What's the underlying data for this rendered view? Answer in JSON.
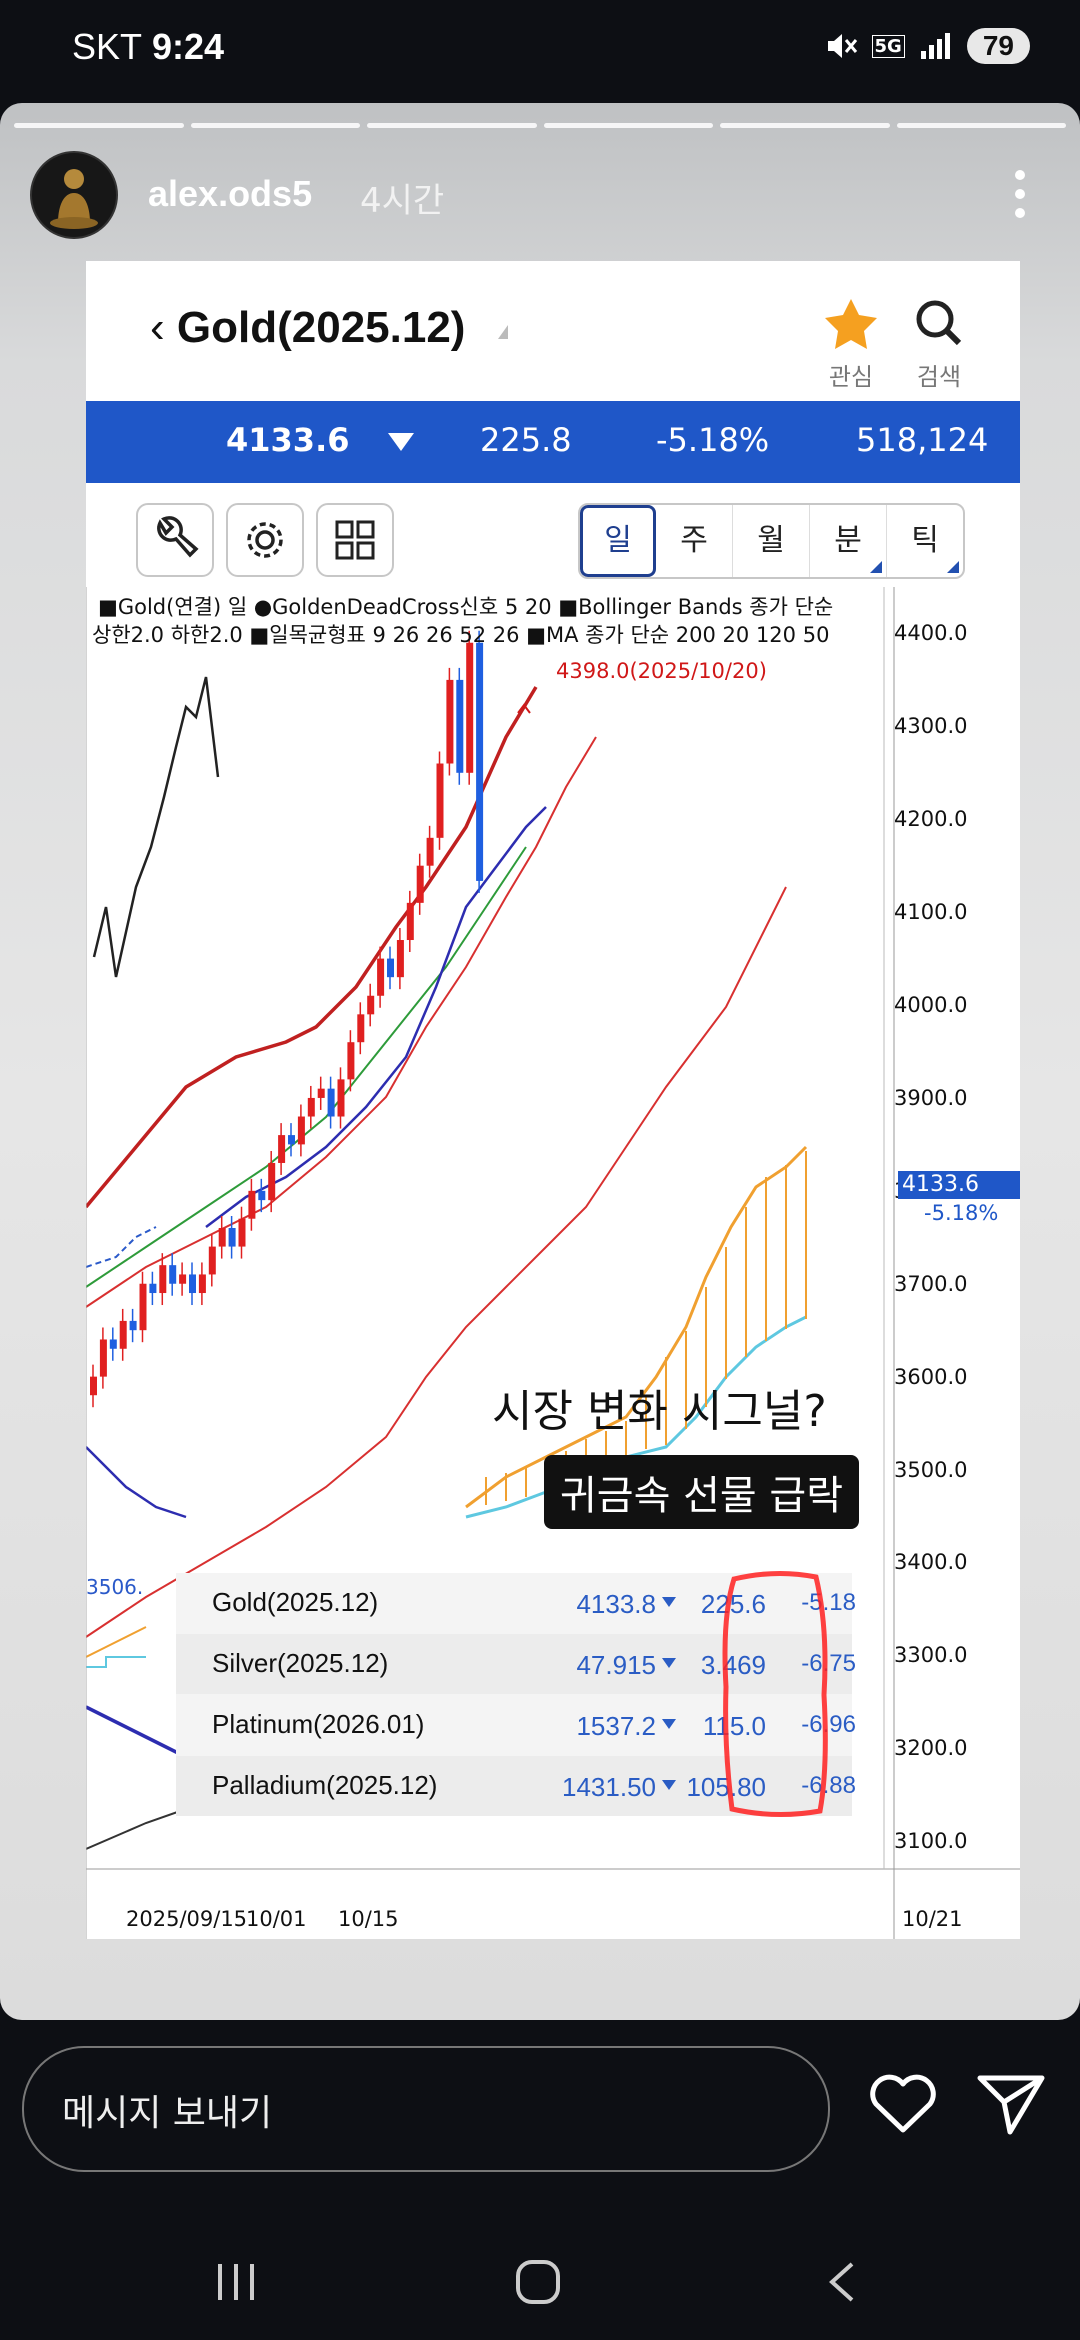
{
  "status_bar": {
    "carrier": "SKT",
    "time": "9:24",
    "network": "5G",
    "battery": "79"
  },
  "story": {
    "username": "alex.ods5",
    "time_ago": "4시간",
    "progress_segments": 6
  },
  "app": {
    "title": "Gold(2025.12)",
    "fav_label": "관심",
    "search_label": "검색",
    "quote": {
      "price": "4133.6",
      "change": "225.8",
      "percent": "-5.18%",
      "volume": "518,124"
    },
    "periods": [
      {
        "label": "일",
        "active": true,
        "corner": false
      },
      {
        "label": "주",
        "active": false,
        "corner": false
      },
      {
        "label": "월",
        "active": false,
        "corner": false
      },
      {
        "label": "분",
        "active": false,
        "corner": true
      },
      {
        "label": "틱",
        "active": false,
        "corner": true
      }
    ]
  },
  "chart": {
    "legend_line1": "■Gold(연결) 일 ●GoldenDeadCross신호 5 20 ■Bollinger Bands 종가 단순",
    "legend_line2": "상한2.0 하한2.0 ■일목균형표 9 26 26 52 26 ■MA 종가 단순 200 20 120 50",
    "high_annotation": "4398.0(2025/10/20)",
    "current_price": "4133.6",
    "current_pct": "-5.18%",
    "bb_label": "3506.",
    "y_ticks": [
      "4400.0",
      "4300.0",
      "4200.0",
      "4100.0",
      "4000.0",
      "3900.0",
      "3800.0",
      "3700.0",
      "3600.0",
      "3500.0",
      "3400.0",
      "3300.0",
      "3200.0",
      "3100.0"
    ],
    "x_ticks": [
      "2025/09/15",
      "10/01",
      "10/15",
      "10/21"
    ],
    "caption1": "시장 변화 시그널?",
    "caption2": "귀금속 선물 급락"
  },
  "chart_data": {
    "type": "candlestick",
    "ylim": [
      3070,
      4450
    ],
    "y_ticks": [
      4400,
      4300,
      4200,
      4100,
      4000,
      3900,
      3800,
      3700,
      3600,
      3500,
      3400,
      3300,
      3200,
      3100
    ],
    "x_ticks": [
      "2025/09/15",
      "10/01",
      "10/15",
      "10/21"
    ],
    "last_close": 4133.6,
    "high": 4398.0,
    "high_date": "2025/10/20"
  },
  "futures": [
    {
      "name": "Gold(2025.12)",
      "price": "4133.8",
      "change": "225.6",
      "pct": "-5.18"
    },
    {
      "name": "Silver(2025.12)",
      "price": "47.915",
      "change": "3.469",
      "pct": "-6.75"
    },
    {
      "name": "Platinum(2026.01)",
      "price": "1537.2",
      "change": "115.0",
      "pct": "-6.96"
    },
    {
      "name": "Palladium(2025.12)",
      "price": "1431.50",
      "change": "105.80",
      "pct": "-6.88"
    }
  ],
  "bottom": {
    "message_placeholder": "메시지 보내기"
  },
  "colors": {
    "accent_blue": "#1f57c8",
    "up_red": "#e02020",
    "down_blue": "#1f5fe0"
  }
}
